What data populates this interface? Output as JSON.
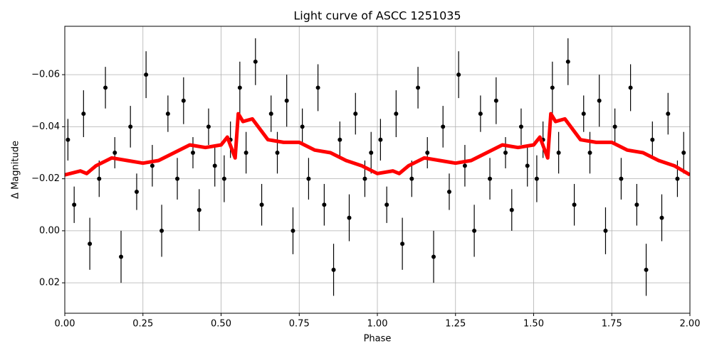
{
  "chart_data": {
    "type": "scatter",
    "title": "Light curve of ASCC 1251035",
    "x_label": "Phase",
    "y_label": "Δ Magnitude",
    "xlim": [
      0,
      2
    ],
    "ylim": [
      -0.0786,
      0.0317
    ],
    "y_inverted": true,
    "grid": true,
    "xticks": [
      {
        "value": 0,
        "label": "0.00"
      },
      0.25,
      {
        "value": 0.5,
        "label": "0.50"
      },
      0.75,
      {
        "value": 1,
        "label": "1.00"
      },
      1.25,
      {
        "value": 1.5,
        "label": "1.50"
      },
      1.75,
      {
        "value": 2,
        "label": "2.00"
      }
    ],
    "yticks": [
      {
        "value": -0.06,
        "label": "−0.06"
      },
      {
        "value": -0.04,
        "label": "−0.04"
      },
      {
        "value": -0.02,
        "label": "−0.02"
      },
      {
        "value": 0,
        "label": "0.00"
      },
      0.02
    ],
    "points": {
      "color": "#000000",
      "x": [
        0.01,
        0.03,
        0.06,
        0.08,
        0.11,
        0.13,
        0.16,
        0.18,
        0.21,
        0.23,
        0.26,
        0.28,
        0.31,
        0.33,
        0.36,
        0.38,
        0.41,
        0.43,
        0.46,
        0.48,
        0.51,
        0.53,
        0.56,
        0.58,
        0.61,
        0.63,
        0.66,
        0.68,
        0.71,
        0.73,
        0.76,
        0.78,
        0.81,
        0.83,
        0.86,
        0.88,
        0.91,
        0.93,
        0.96,
        0.98,
        1.01,
        1.03,
        1.06,
        1.08,
        1.11,
        1.13,
        1.16,
        1.18,
        1.21,
        1.23,
        1.26,
        1.28,
        1.31,
        1.33,
        1.36,
        1.38,
        1.41,
        1.43,
        1.46,
        1.48,
        1.51,
        1.53,
        1.56,
        1.58,
        1.61,
        1.63,
        1.66,
        1.68,
        1.71,
        1.73,
        1.76,
        1.78,
        1.81,
        1.83,
        1.86,
        1.88,
        1.91,
        1.93,
        1.96,
        1.98
      ],
      "values": [
        -0.035,
        -0.01,
        -0.045,
        0.005,
        -0.02,
        -0.055,
        -0.03,
        0.01,
        -0.04,
        -0.015,
        -0.06,
        -0.025,
        0.0,
        -0.045,
        -0.02,
        -0.05,
        -0.03,
        -0.008,
        -0.04,
        -0.025,
        -0.02,
        -0.035,
        -0.055,
        -0.03,
        -0.065,
        -0.01,
        -0.045,
        -0.03,
        -0.05,
        0.0,
        -0.04,
        -0.02,
        -0.055,
        -0.01,
        0.015,
        -0.035,
        -0.005,
        -0.045,
        -0.02,
        -0.03,
        -0.035,
        -0.01,
        -0.045,
        0.005,
        -0.02,
        -0.055,
        -0.03,
        0.01,
        -0.04,
        -0.015,
        -0.06,
        -0.025,
        0.0,
        -0.045,
        -0.02,
        -0.05,
        -0.03,
        -0.008,
        -0.04,
        -0.025,
        -0.02,
        -0.035,
        -0.055,
        -0.03,
        -0.065,
        -0.01,
        -0.045,
        -0.03,
        -0.05,
        0.0,
        -0.04,
        -0.02,
        -0.055,
        -0.01,
        0.015,
        -0.035,
        -0.005,
        -0.045,
        -0.02,
        -0.03
      ],
      "errors": [
        0.008,
        0.007,
        0.009,
        0.01,
        0.007,
        0.008,
        0.006,
        0.01,
        0.008,
        0.007,
        0.009,
        0.008,
        0.01,
        0.007,
        0.008,
        0.009,
        0.006,
        0.008,
        0.007,
        0.008,
        0.009,
        0.007,
        0.01,
        0.008,
        0.009,
        0.008,
        0.007,
        0.008,
        0.01,
        0.009,
        0.007,
        0.008,
        0.009,
        0.008,
        0.01,
        0.007,
        0.009,
        0.008,
        0.007,
        0.008,
        0.008,
        0.007,
        0.009,
        0.01,
        0.007,
        0.008,
        0.006,
        0.01,
        0.008,
        0.007,
        0.009,
        0.008,
        0.01,
        0.007,
        0.008,
        0.009,
        0.006,
        0.008,
        0.007,
        0.008,
        0.009,
        0.007,
        0.01,
        0.008,
        0.009,
        0.008,
        0.007,
        0.008,
        0.01,
        0.009,
        0.007,
        0.008,
        0.009,
        0.008,
        0.01,
        0.007,
        0.009,
        0.008,
        0.007,
        0.008
      ]
    },
    "trend": {
      "color": "#ff0000",
      "x": [
        0,
        0.05,
        0.07,
        0.1,
        0.15,
        0.2,
        0.25,
        0.3,
        0.35,
        0.4,
        0.45,
        0.5,
        0.52,
        0.545,
        0.555,
        0.57,
        0.6,
        0.65,
        0.7,
        0.75,
        0.8,
        0.85,
        0.9,
        0.95,
        1.0,
        1.05,
        1.07,
        1.1,
        1.15,
        1.2,
        1.25,
        1.3,
        1.35,
        1.4,
        1.45,
        1.5,
        1.52,
        1.545,
        1.555,
        1.57,
        1.6,
        1.65,
        1.7,
        1.75,
        1.8,
        1.85,
        1.9,
        1.95,
        2.0
      ],
      "values": [
        -0.0215,
        -0.023,
        -0.022,
        -0.025,
        -0.028,
        -0.027,
        -0.026,
        -0.027,
        -0.03,
        -0.033,
        -0.032,
        -0.033,
        -0.036,
        -0.028,
        -0.045,
        -0.042,
        -0.043,
        -0.035,
        -0.034,
        -0.034,
        -0.031,
        -0.03,
        -0.027,
        -0.025,
        -0.022,
        -0.023,
        -0.022,
        -0.025,
        -0.028,
        -0.027,
        -0.026,
        -0.027,
        -0.03,
        -0.033,
        -0.032,
        -0.033,
        -0.036,
        -0.028,
        -0.045,
        -0.042,
        -0.043,
        -0.035,
        -0.034,
        -0.034,
        -0.031,
        -0.03,
        -0.027,
        -0.025,
        -0.0215
      ]
    }
  }
}
